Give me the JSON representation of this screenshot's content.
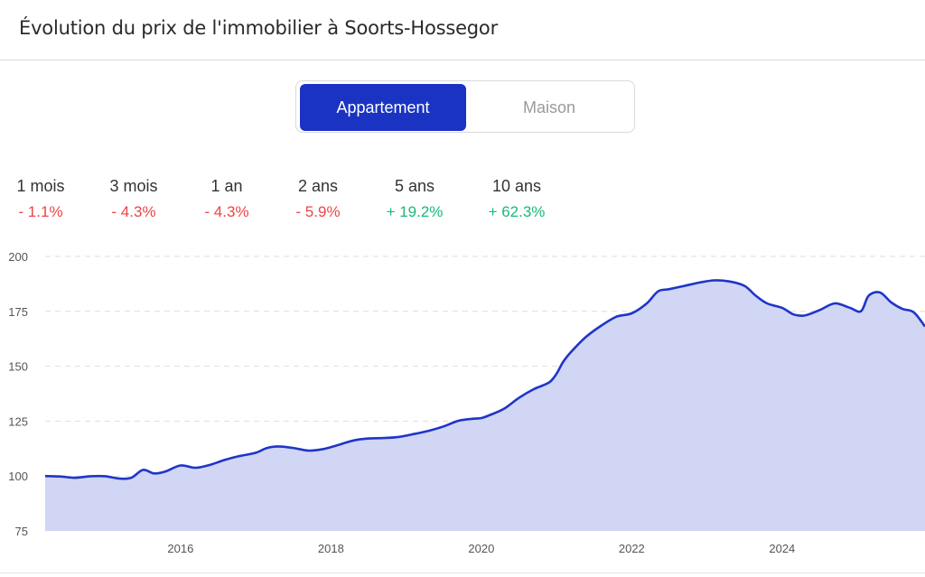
{
  "header": {
    "title": "Évolution du prix de l'immobilier à Soorts-Hossegor"
  },
  "toggle": {
    "options": [
      "Appartement",
      "Maison"
    ],
    "selected": "Appartement"
  },
  "stats": [
    {
      "period": "1 mois",
      "change": "- 1.1%",
      "trend": "neg"
    },
    {
      "period": "3 mois",
      "change": "- 4.3%",
      "trend": "neg"
    },
    {
      "period": "1 an",
      "change": "- 4.3%",
      "trend": "neg"
    },
    {
      "period": "2 ans",
      "change": "- 5.9%",
      "trend": "neg"
    },
    {
      "period": "5 ans",
      "change": "+ 19.2%",
      "trend": "pos"
    },
    {
      "period": "10 ans",
      "change": "+ 62.3%",
      "trend": "pos"
    }
  ],
  "colors": {
    "accent": "#1a33c2",
    "line": "#1f35c8",
    "area": "#d0d6f4",
    "negative": "#ef4444",
    "positive": "#19b97a"
  },
  "chart_data": {
    "type": "area",
    "title": "",
    "xlabel": "",
    "ylabel": "",
    "xlim": [
      2014.2,
      2025.9
    ],
    "ylim": [
      75,
      200
    ],
    "y_ticks": [
      75,
      100,
      125,
      150,
      175,
      200
    ],
    "x_ticks": [
      2016,
      2018,
      2020,
      2022,
      2024
    ],
    "grid": true,
    "series": [
      {
        "x": [
          2014.2,
          2014.4,
          2014.6,
          2014.8,
          2015.0,
          2015.2,
          2015.35,
          2015.5,
          2015.65,
          2015.8,
          2016.0,
          2016.2,
          2016.4,
          2016.6,
          2016.8,
          2017.0,
          2017.15,
          2017.3,
          2017.5,
          2017.7,
          2017.9,
          2018.1,
          2018.3,
          2018.5,
          2018.7,
          2018.9,
          2019.1,
          2019.3,
          2019.5,
          2019.7,
          2019.9,
          2020.0,
          2020.1,
          2020.3,
          2020.5,
          2020.7,
          2020.9,
          2021.0,
          2021.1,
          2021.25,
          2021.4,
          2021.6,
          2021.8,
          2022.0,
          2022.2,
          2022.35,
          2022.5,
          2022.7,
          2022.9,
          2023.1,
          2023.3,
          2023.5,
          2023.65,
          2023.8,
          2024.0,
          2024.15,
          2024.3,
          2024.5,
          2024.7,
          2024.9,
          2025.05,
          2025.15,
          2025.3,
          2025.45,
          2025.6,
          2025.75,
          2025.9
        ],
        "y": [
          100,
          99.8,
          99.2,
          99.9,
          99.9,
          98.8,
          99.3,
          102.8,
          101.2,
          102.1,
          104.8,
          103.8,
          105.2,
          107.5,
          109.2,
          110.6,
          112.8,
          113.5,
          112.8,
          111.6,
          112.3,
          114.2,
          116.2,
          117.1,
          117.3,
          117.8,
          119.1,
          120.6,
          122.6,
          125.2,
          126.1,
          126.4,
          127.6,
          130.6,
          135.6,
          139.6,
          142.6,
          146.6,
          152.6,
          158.6,
          163.6,
          168.6,
          172.6,
          174.1,
          178.6,
          184.1,
          185.1,
          186.6,
          188.1,
          189.1,
          188.6,
          186.6,
          182.1,
          178.6,
          176.6,
          173.6,
          173.1,
          175.6,
          178.6,
          176.6,
          175.1,
          182.1,
          183.6,
          179.1,
          176.1,
          174.6,
          168.1
        ]
      }
    ]
  }
}
